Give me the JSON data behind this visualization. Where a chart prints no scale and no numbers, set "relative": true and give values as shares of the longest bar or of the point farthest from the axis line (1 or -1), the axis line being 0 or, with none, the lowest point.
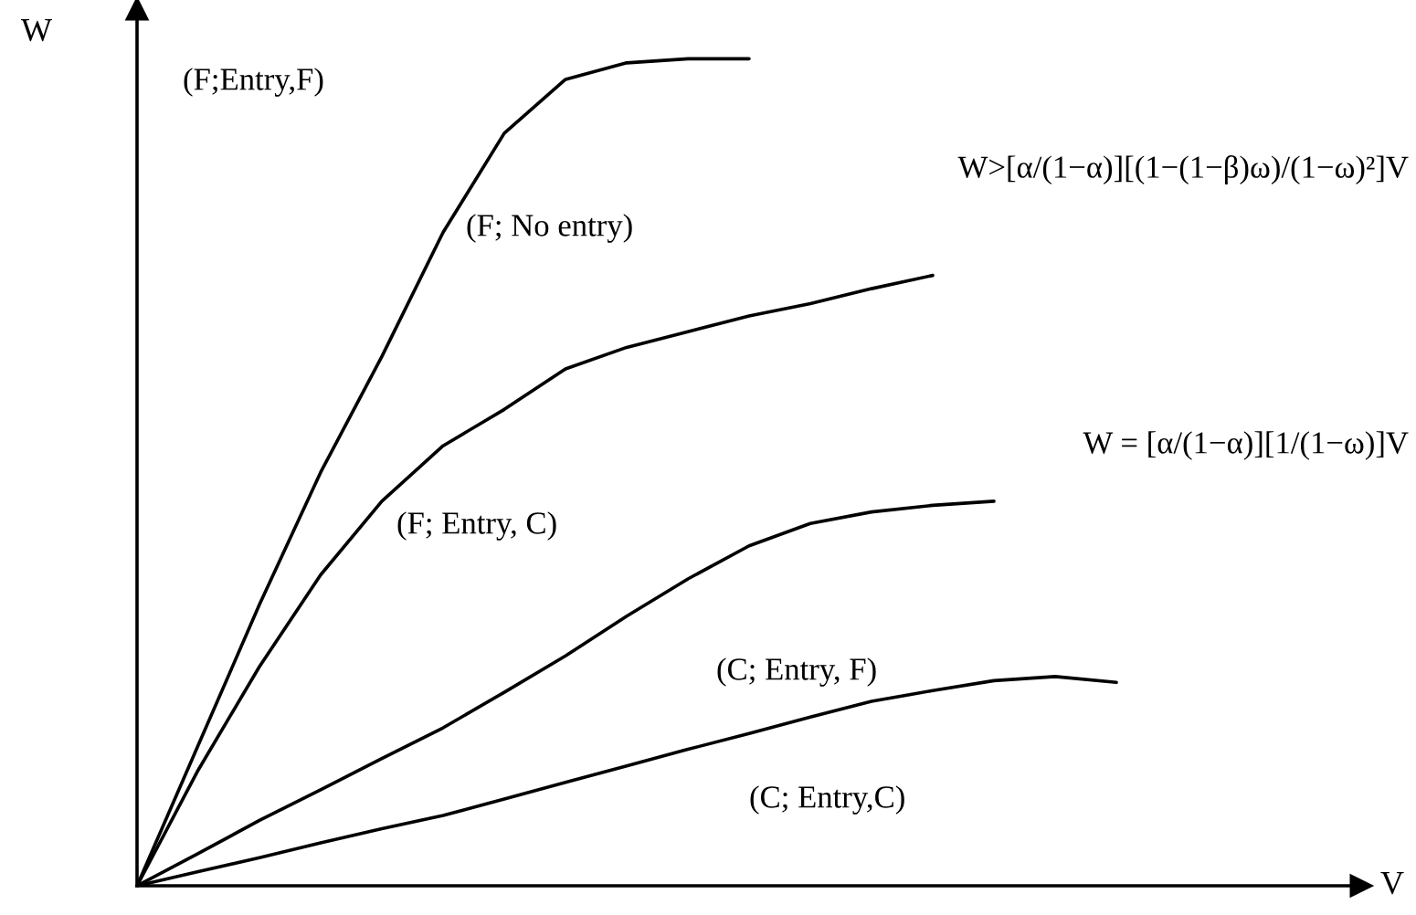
{
  "chart_data": {
    "type": "line",
    "relative": true,
    "xlabel": "V",
    "ylabel": "W",
    "color": "#000000",
    "marker": "none",
    "line_style": "solid",
    "categories": [
      null,
      null,
      null,
      null,
      null,
      null,
      null,
      null,
      null,
      null,
      null,
      null,
      null,
      null,
      null,
      null,
      null,
      null,
      null,
      null,
      null
    ],
    "series": [
      {
        "values": [
          0,
          0.17,
          0.34,
          0.5,
          0.64,
          0.79,
          0.91,
          0.975,
          0.995,
          1,
          1,
          null,
          null,
          null,
          null,
          null,
          null,
          null,
          null,
          null,
          null
        ]
      },
      {
        "values": [
          0,
          0.14,
          0.265,
          0.376,
          0.465,
          0.532,
          0.576,
          0.625,
          0.651,
          0.67,
          0.689,
          0.704,
          0.722,
          0.738,
          null,
          null,
          null,
          null,
          null,
          null,
          null
        ]
      },
      {
        "values": [
          0,
          0.039,
          0.079,
          0.116,
          0.154,
          0.191,
          0.234,
          0.278,
          0.326,
          0.371,
          0.411,
          0.438,
          0.452,
          0.46,
          0.465,
          null,
          null,
          null,
          null,
          null,
          null
        ]
      },
      {
        "values": [
          0,
          0.017,
          0.034,
          0.052,
          0.069,
          0.085,
          0.105,
          0.125,
          0.145,
          0.165,
          0.184,
          0.204,
          0.223,
          0.236,
          0.248,
          0.253,
          0.246,
          null,
          null,
          null,
          null
        ]
      }
    ],
    "annotations": [
      "(F;Entry,F)",
      "(F; No entry)",
      "W>[α/(1−α)][(1−(1−β)ω)/(1−ω)²]V",
      "(F; Entry, C)",
      "W = [α/(1−α)][1/(1−ω)]V",
      "(C; Entry, F)",
      "(C; Entry,C)"
    ]
  }
}
